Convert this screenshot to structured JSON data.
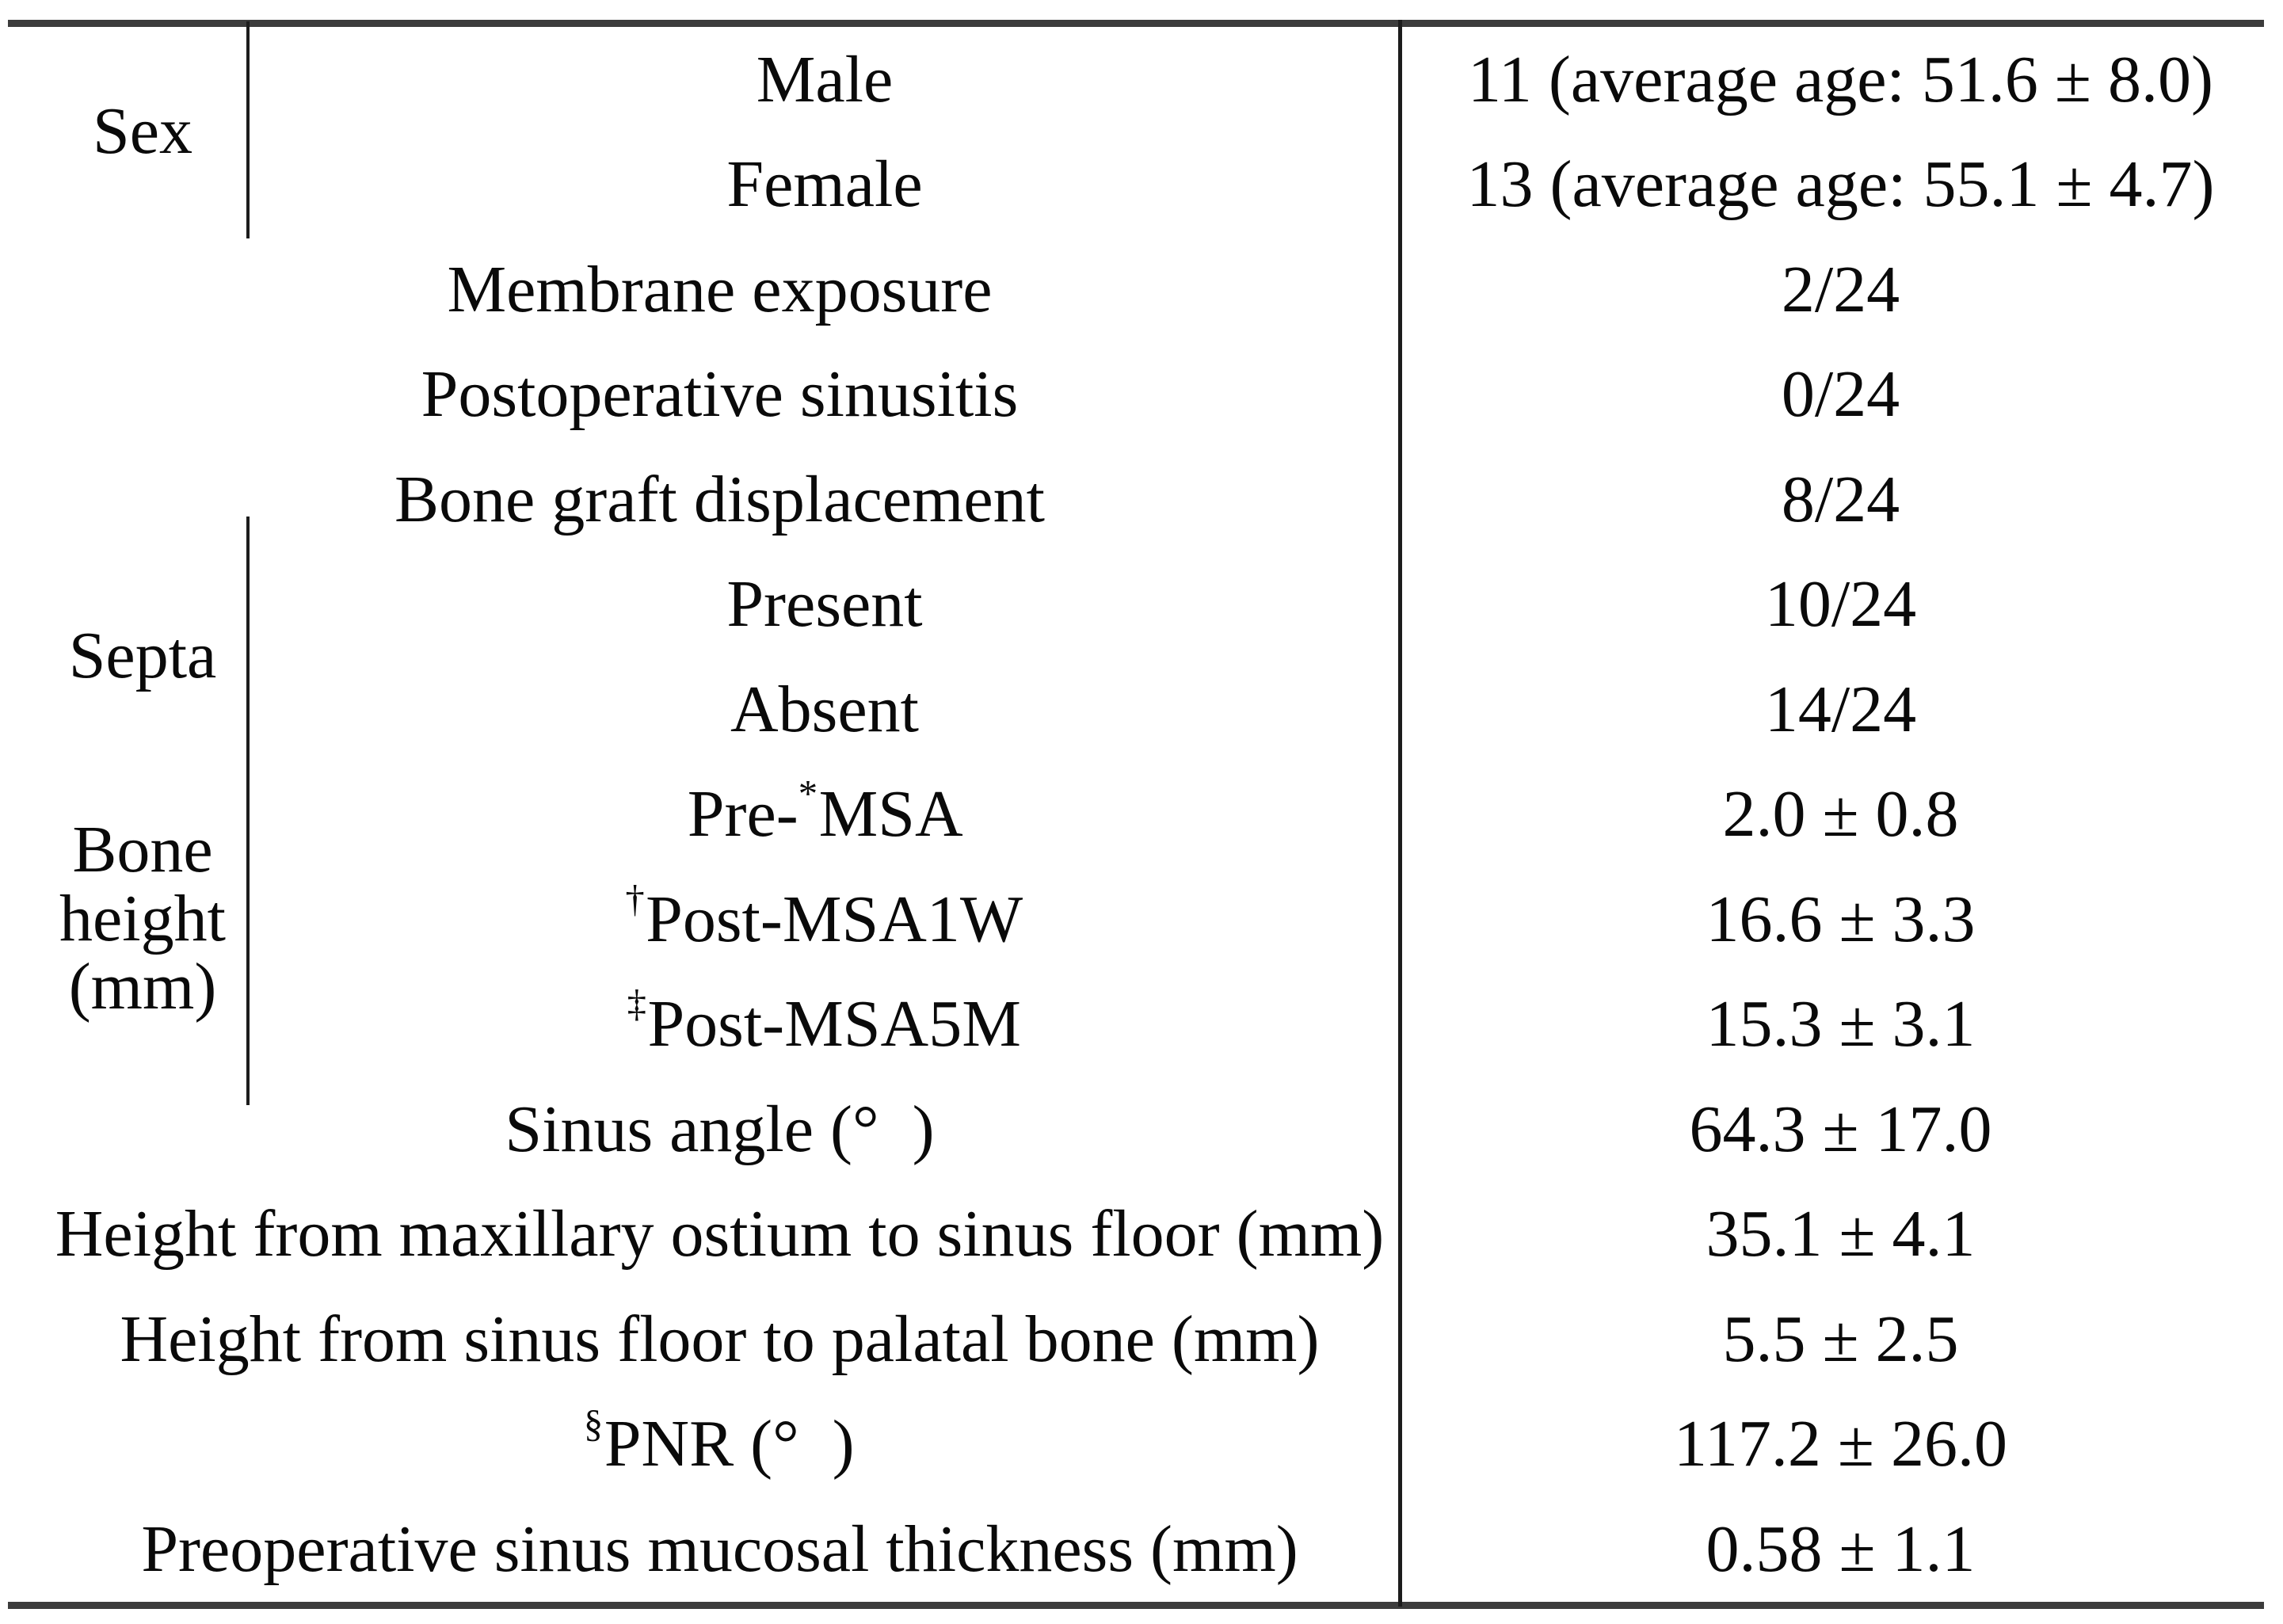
{
  "table": {
    "groups": [
      {
        "label": "Sex"
      },
      {
        "label": "Septa"
      },
      {
        "label": "Bone height (mm)"
      }
    ],
    "rows": [
      {
        "group": "Sex",
        "text": "Male",
        "value": "11 (average age: 51.6 ± 8.0)"
      },
      {
        "group": "Sex",
        "text": "Female",
        "value": "13 (average age: 55.1 ± 4.7)"
      },
      {
        "text": "Membrane exposure",
        "value": "2/24"
      },
      {
        "text": "Postoperative sinusitis",
        "value": "0/24"
      },
      {
        "text": "Bone graft displacement",
        "value": "8/24"
      },
      {
        "group": "Septa",
        "text": "Present",
        "value": "10/24"
      },
      {
        "group": "Septa",
        "text": "Absent",
        "value": "14/24"
      },
      {
        "group": "Bone height (mm)",
        "text": "Pre-",
        "sup_mid": "*",
        "text2": "MSA",
        "value": "2.0 ± 0.8"
      },
      {
        "group": "Bone height (mm)",
        "sup_pre": "†",
        "text": "Post-MSA1W",
        "value": "16.6 ± 3.3"
      },
      {
        "group": "Bone height (mm)",
        "sup_pre": "‡",
        "text": "Post-MSA5M",
        "value": "15.3 ± 3.1"
      },
      {
        "text": "Sinus angle (° )",
        "value": "64.3 ± 17.0"
      },
      {
        "text": "Height from maxillary ostium to sinus floor (mm)",
        "value": "35.1 ± 4.1"
      },
      {
        "text": "Height from sinus floor to palatal bone (mm)",
        "value": "5.5 ± 2.5"
      },
      {
        "sup_pre": "§",
        "text": "PNR (° )",
        "value": "117.2 ± 26.0"
      },
      {
        "text": "Preoperative sinus mucosal thickness (mm)",
        "value": "0.58 ± 1.1"
      }
    ]
  }
}
